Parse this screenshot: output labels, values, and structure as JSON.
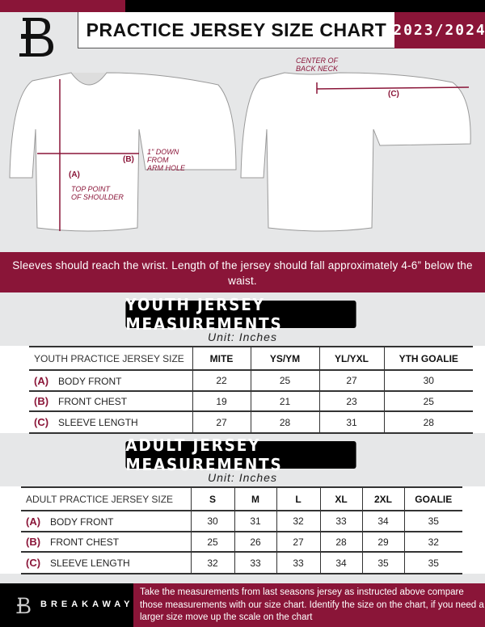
{
  "header": {
    "title": "PRACTICE JERSEY SIZE CHART",
    "season": "2023/2024",
    "logo": "breakaway-b-logo"
  },
  "diagram": {
    "front_labels": {
      "a_label": "(A)",
      "a_note": "TOP POINT\nOF SHOULDER",
      "b_label": "(B)",
      "b_note": "1\" DOWN\nFROM\nARM HOLE"
    },
    "back_labels": {
      "c_label": "(C)",
      "c_note": "CENTER OF\nBACK NECK"
    }
  },
  "instruction": "Sleeves should reach the wrist. Length of the jersey should fall approximately 4-6” below the waist.",
  "youth": {
    "title": "YOUTH JERSEY MEASUREMENTS",
    "unit": "Unit: Inches",
    "headers": [
      "YOUTH PRACTICE JERSEY SIZE",
      "MITE",
      "YS/YM",
      "YL/YXL",
      "YTH GOALIE"
    ],
    "rows": [
      {
        "code": "(A)",
        "name": "BODY FRONT",
        "values": [
          "22",
          "25",
          "27",
          "30"
        ]
      },
      {
        "code": "(B)",
        "name": "FRONT CHEST",
        "values": [
          "19",
          "21",
          "23",
          "25"
        ]
      },
      {
        "code": "(C)",
        "name": "SLEEVE LENGTH",
        "values": [
          "27",
          "28",
          "31",
          "28"
        ]
      }
    ]
  },
  "adult": {
    "title": "ADULT JERSEY MEASUREMENTS",
    "unit": "Unit: Inches",
    "headers": [
      "ADULT PRACTICE JERSEY SIZE",
      "S",
      "M",
      "L",
      "XL",
      "2XL",
      "GOALIE"
    ],
    "rows": [
      {
        "code": "(A)",
        "name": "BODY FRONT",
        "values": [
          "30",
          "31",
          "32",
          "33",
          "34",
          "35"
        ]
      },
      {
        "code": "(B)",
        "name": "FRONT CHEST",
        "values": [
          "25",
          "26",
          "27",
          "28",
          "29",
          "32"
        ]
      },
      {
        "code": "(C)",
        "name": "SLEEVE LENGTH",
        "values": [
          "32",
          "33",
          "33",
          "34",
          "35",
          "35"
        ]
      }
    ]
  },
  "footer": {
    "brand": "BREAKAWAY",
    "text": "Take the measurements from last seasons jersey as instructed above compare those measurements  with our size chart. Identify the size on the chart, if you need a larger size move up the scale on the chart"
  },
  "colors": {
    "accent": "#8a1538",
    "dark": "#000000",
    "background": "#e6e7e8"
  }
}
